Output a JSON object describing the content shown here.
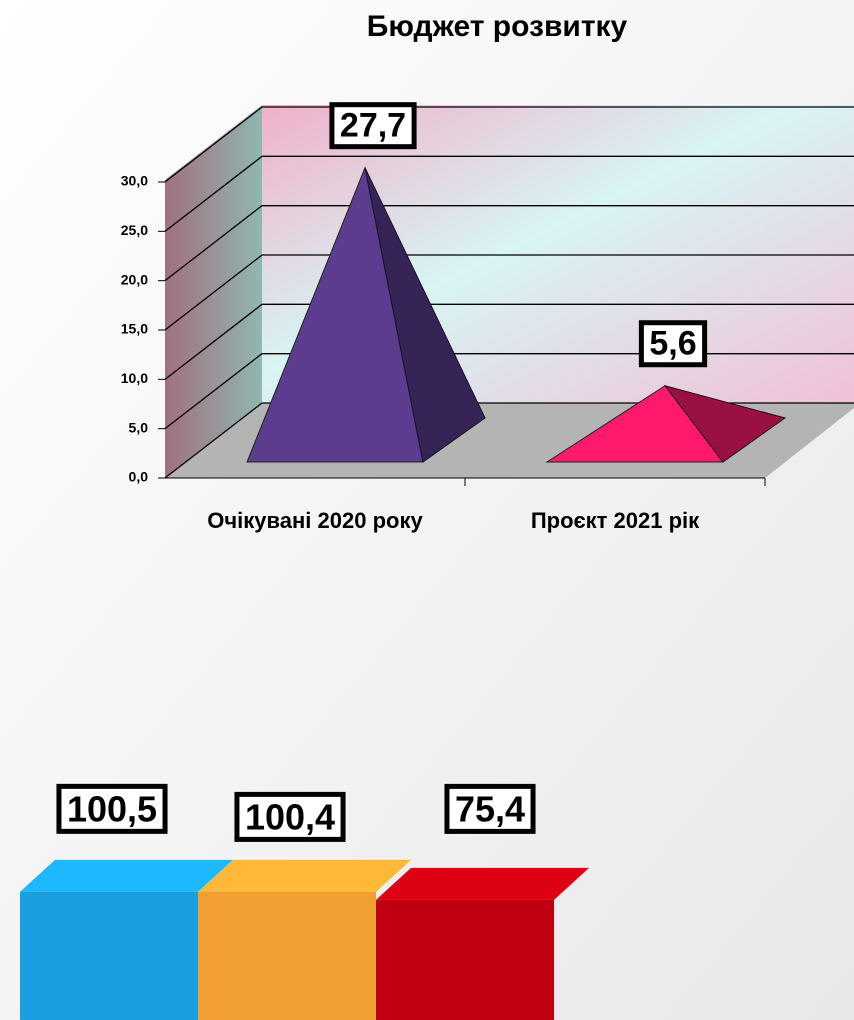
{
  "chart_data": [
    {
      "type": "pyramid",
      "title": "Бюджет розвитку",
      "categories": [
        "Очікувані 2020 року",
        "Проєкт 2021 рік"
      ],
      "values": [
        27.7,
        5.6
      ],
      "value_labels": [
        "27,7",
        "5,6"
      ],
      "colors": [
        "#5b3c8f",
        "#ff1a6e"
      ],
      "ylim": [
        0,
        30
      ],
      "yticks": [
        {
          "value": 0,
          "label": "0,0"
        },
        {
          "value": 5,
          "label": "5,0"
        },
        {
          "value": 10,
          "label": "10,0"
        },
        {
          "value": 15,
          "label": "15,0"
        },
        {
          "value": 20,
          "label": "20,0"
        },
        {
          "value": 25,
          "label": "25,0"
        },
        {
          "value": 30,
          "label": "30,0"
        }
      ],
      "grid": true
    },
    {
      "type": "slab",
      "categories": [
        null,
        null,
        null
      ],
      "values": [
        100.5,
        100.4,
        75.4
      ],
      "value_labels": [
        "100,5",
        "100,4",
        "75,4"
      ],
      "colors": [
        "#1aa0e0",
        "#f0a030",
        "#c00010"
      ]
    }
  ]
}
